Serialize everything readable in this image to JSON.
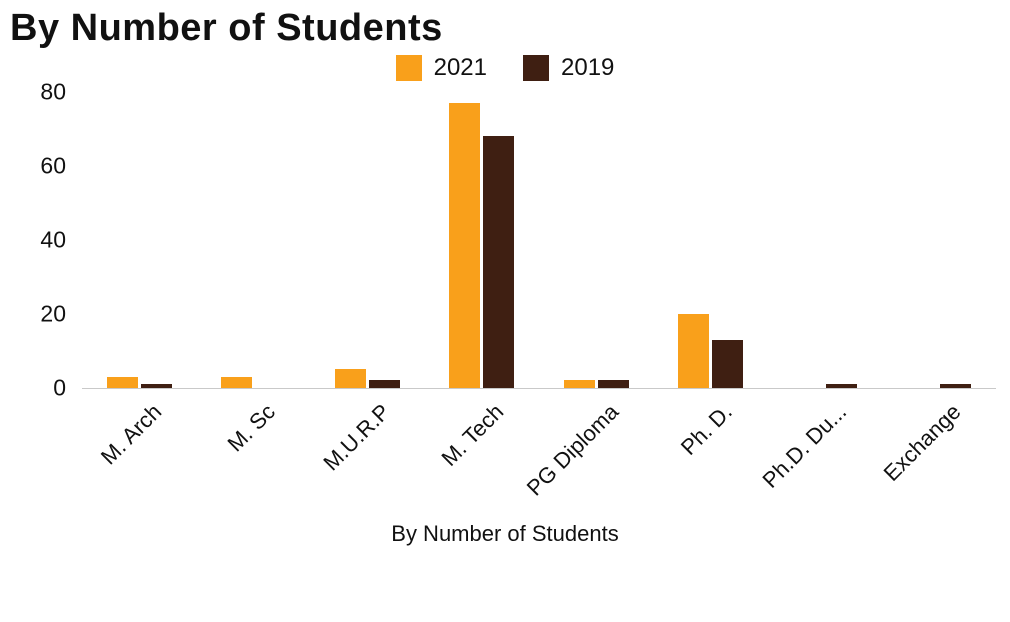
{
  "title": "By Number of Students",
  "legend": [
    {
      "label": "2021",
      "color": "#F9A01B"
    },
    {
      "label": "2019",
      "color": "#3F1F12"
    }
  ],
  "chart_data": {
    "type": "bar",
    "title": "By Number of Students",
    "categories": [
      "M. Arch",
      "M. Sc",
      "M.U.R.P",
      "M. Tech",
      "PG Diploma",
      "Ph. D.",
      "Ph.D. Du...",
      "Exchange"
    ],
    "series": [
      {
        "name": "2021",
        "color": "#F9A01B",
        "values": [
          3,
          3,
          5,
          77,
          2,
          20,
          0,
          0
        ]
      },
      {
        "name": "2019",
        "color": "#3F1F12",
        "values": [
          1,
          0,
          2,
          68,
          2,
          13,
          1,
          1
        ]
      }
    ],
    "xlabel": "By Number of Students",
    "ylabel": "",
    "ylim": [
      0,
      80
    ],
    "yticks": [
      0,
      20,
      40,
      60,
      80
    ],
    "legend_position": "top",
    "grid": false
  }
}
